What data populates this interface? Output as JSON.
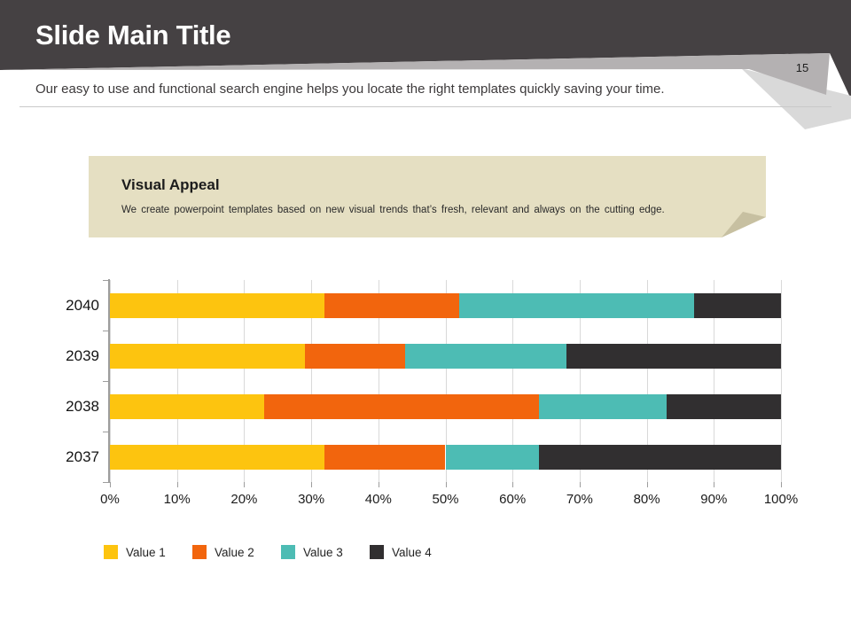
{
  "slide": {
    "title": "Slide Main Title",
    "page_number": "15",
    "subtitle": "Our easy to use and functional search engine helps you locate the right templates quickly saving your time."
  },
  "callout": {
    "title": "Visual Appeal",
    "body": "We create powerpoint templates based on new visual trends that’s fresh, relevant and always on the cutting edge."
  },
  "chart_data": {
    "type": "bar",
    "orientation": "horizontal",
    "stacked": true,
    "percent_stacked": true,
    "categories": [
      "2040",
      "2039",
      "2038",
      "2037"
    ],
    "series": [
      {
        "name": "Value 1",
        "color": "#fdc40f",
        "values": [
          32,
          29,
          23,
          32
        ]
      },
      {
        "name": "Value 2",
        "color": "#f2650d",
        "values": [
          20,
          15,
          41,
          18
        ]
      },
      {
        "name": "Value 3",
        "color": "#4dbcb4",
        "values": [
          35,
          24,
          19,
          14
        ]
      },
      {
        "name": "Value 4",
        "color": "#312f30",
        "values": [
          13,
          32,
          17,
          36
        ]
      }
    ],
    "x_ticks": [
      "0%",
      "10%",
      "20%",
      "30%",
      "40%",
      "50%",
      "60%",
      "70%",
      "80%",
      "90%",
      "100%"
    ],
    "xlim": [
      0,
      100
    ],
    "grid": true,
    "legend_position": "bottom"
  },
  "colors": {
    "header_bg": "#454143",
    "ribbon_gray": "#b4b1b2",
    "corner_fold_gray": "#d9d9d9",
    "callout_bg": "#e5dfc2",
    "callout_fold": "#c7c0a1",
    "divider": "#c9c9c9",
    "gridline": "#d9d9d9",
    "axis": "#9d9d9d"
  }
}
